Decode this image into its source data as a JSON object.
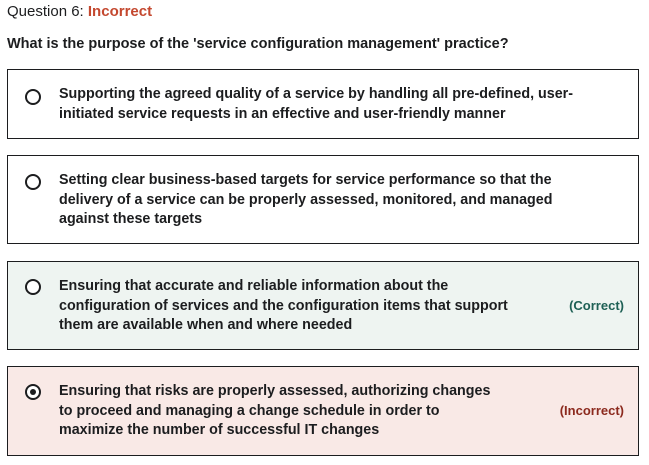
{
  "question": {
    "label": "Question 6:",
    "status": "Incorrect",
    "status_color": "#c4482f",
    "text": "What is the purpose of the 'service configuration management' practice?"
  },
  "options": [
    {
      "lines": [
        "Supporting the agreed quality of a service by handling all pre-defined, user-",
        "initiated service requests in an effective and user-friendly manner"
      ],
      "selected": false,
      "feedback": ""
    },
    {
      "lines": [
        "Setting clear business-based targets for service performance so that the",
        "delivery of a service can be properly assessed, monitored, and managed",
        "against these targets"
      ],
      "selected": false,
      "feedback": ""
    },
    {
      "lines": [
        "Ensuring that accurate and reliable information about the",
        "configuration of services and the configuration items that support",
        "them are available when and where needed"
      ],
      "selected": false,
      "feedback": "(Correct)",
      "feedback_color": "#1e6055",
      "background": "#eef4f1"
    },
    {
      "lines": [
        "Ensuring that risks are properly assessed, authorizing changes",
        "to proceed and managing a change schedule in order to",
        "maximize the number of successful IT changes"
      ],
      "selected": true,
      "feedback": "(Incorrect)",
      "feedback_color": "#8c2a1e",
      "background": "#f9e9e6"
    }
  ]
}
